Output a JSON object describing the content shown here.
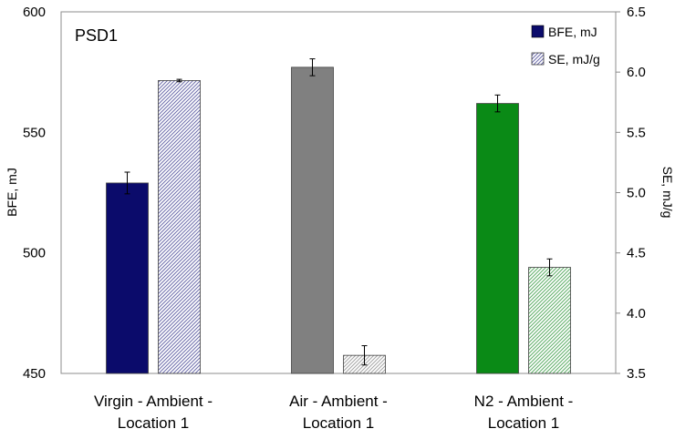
{
  "chart_data": {
    "type": "bar",
    "panel_label": "PSD1",
    "categories": [
      [
        "Virgin  - Ambient -",
        "Location 1"
      ],
      [
        "Air  - Ambient -",
        "Location 1"
      ],
      [
        "N2  - Ambient -",
        "Location 1"
      ]
    ],
    "ylabel_left": "BFE, mJ",
    "ylabel_right": "SE, mJ/g",
    "ylim_left": [
      450,
      600
    ],
    "ylim_right": [
      3.5,
      6.5
    ],
    "yticks_left": [
      "450",
      "500",
      "550",
      "600"
    ],
    "yticks_right": [
      "3.5",
      "4.0",
      "4.5",
      "5.0",
      "5.5",
      "6.0",
      "6.5"
    ],
    "series": [
      {
        "name": "BFE, mJ",
        "axis": "left",
        "values": [
          529,
          577,
          562
        ],
        "errors": [
          4.5,
          3.5,
          3.5
        ],
        "colors": [
          "#0b0b6b",
          "#808080",
          "#0a8a16"
        ],
        "pattern": "solid"
      },
      {
        "name": "SE, mJ/g",
        "axis": "right",
        "values": [
          5.93,
          3.65,
          4.38
        ],
        "errors": [
          0.01,
          0.08,
          0.07
        ],
        "colors": [
          "#6d6dab",
          "#a6a6a6",
          "#5fae68"
        ],
        "pattern": "hatched"
      }
    ],
    "legend": [
      {
        "label": "BFE, mJ",
        "pattern": "solid"
      },
      {
        "label": "SE, mJ/g",
        "pattern": "hatched"
      }
    ]
  }
}
